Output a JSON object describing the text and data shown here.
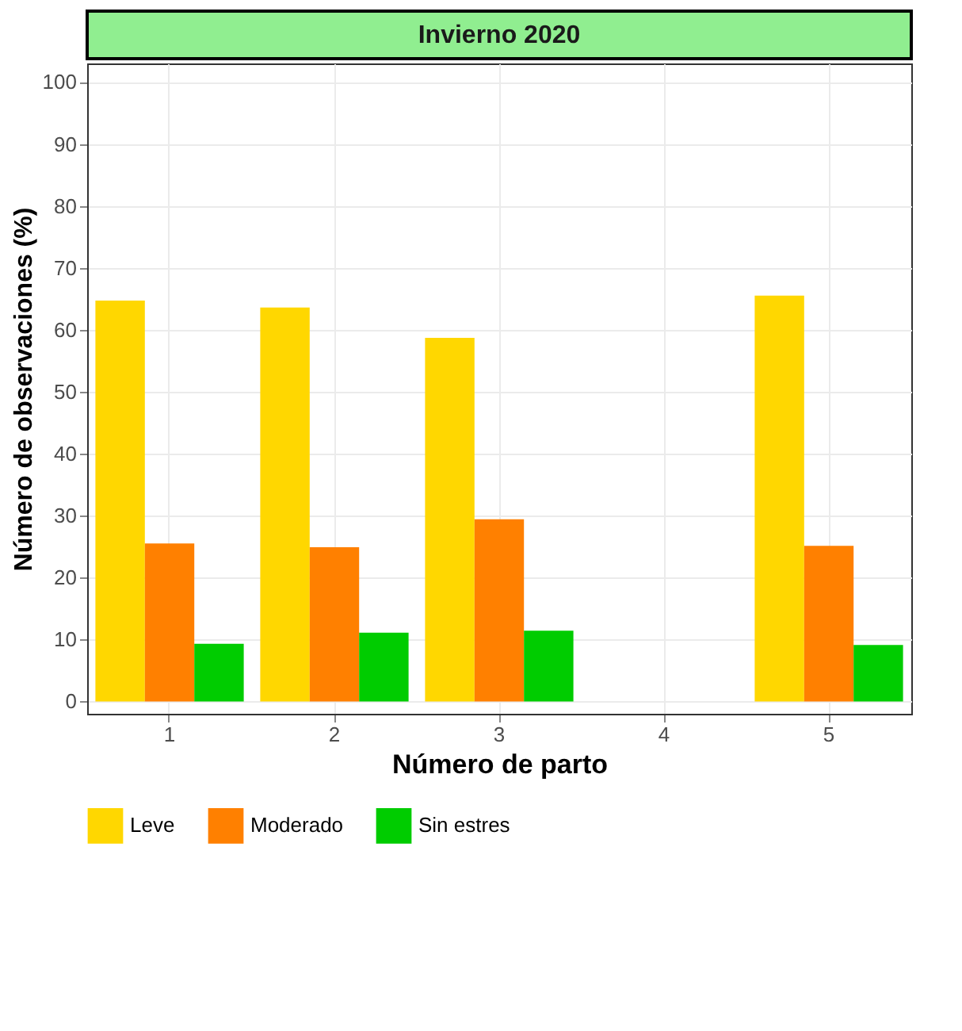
{
  "chart_data": {
    "type": "bar",
    "title": "Invierno 2020",
    "xlabel": "Número de parto",
    "ylabel": "Número de observaciones (%)",
    "categories": [
      "1",
      "2",
      "3",
      "4",
      "5"
    ],
    "series": [
      {
        "name": "Leve",
        "color": "#ffd700",
        "values": [
          64.7,
          63.6,
          58.7,
          null,
          65.5
        ]
      },
      {
        "name": "Moderado",
        "color": "#ff8000",
        "values": [
          25.5,
          24.9,
          29.4,
          null,
          25.1
        ]
      },
      {
        "name": "Sin estres",
        "color": "#00cc00",
        "values": [
          9.3,
          11.1,
          11.4,
          null,
          9.1
        ]
      }
    ],
    "ylim": [
      -2,
      103
    ],
    "yticks": [
      0,
      10,
      20,
      30,
      40,
      50,
      60,
      70,
      80,
      90,
      100
    ],
    "grid": true,
    "legend": "bottom"
  }
}
